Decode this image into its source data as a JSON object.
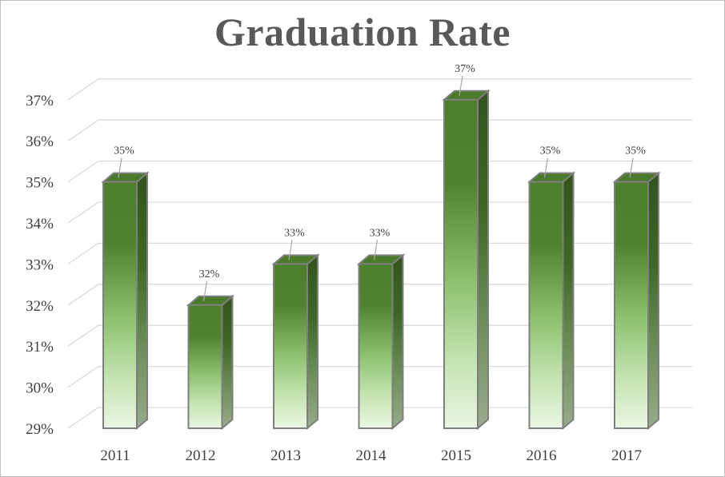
{
  "chart_data": {
    "type": "bar",
    "title": "Graduation Rate",
    "categories": [
      "2011",
      "2012",
      "2013",
      "2014",
      "2015",
      "2016",
      "2017"
    ],
    "values": [
      35,
      32,
      33,
      33,
      37,
      35,
      35
    ],
    "data_labels": [
      "35%",
      "32%",
      "33%",
      "33%",
      "37%",
      "35%",
      "35%"
    ],
    "value_unit": "%",
    "ylim": [
      29,
      37
    ],
    "yticks": [
      29,
      30,
      31,
      32,
      33,
      34,
      35,
      36,
      37
    ],
    "ytick_labels": [
      "29%",
      "30%",
      "31%",
      "32%",
      "33%",
      "34%",
      "35%",
      "36%",
      "37%"
    ],
    "xlabel": "",
    "ylabel": "",
    "grid": true,
    "legend": "none",
    "style": "3d-column",
    "colors": {
      "bar_top": "#4e7f2b",
      "bar_bottom": "#e8f5e0",
      "bar_side": "#3a5f22",
      "bar_outline": "#7f7f7f",
      "grid": "#d9d9d9",
      "title": "#595959"
    }
  }
}
